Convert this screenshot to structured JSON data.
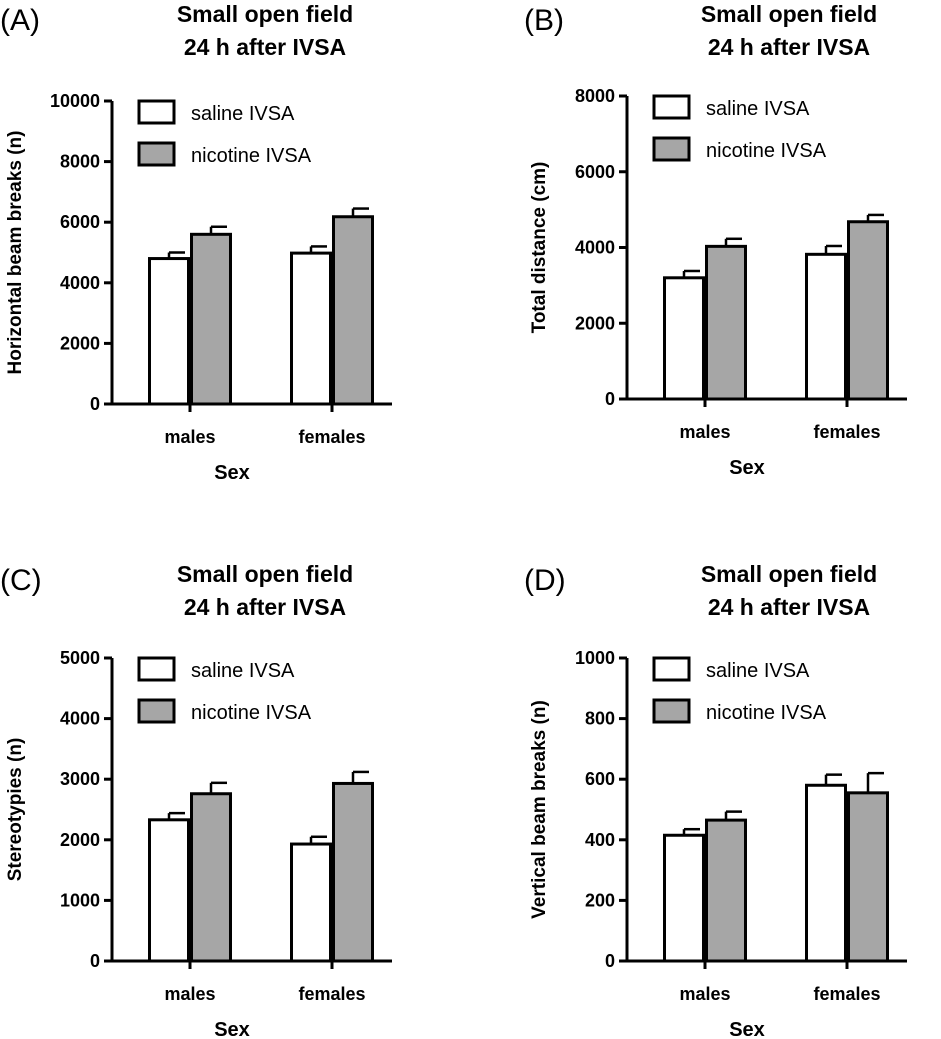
{
  "chart_data": [
    {
      "panel": "(A)",
      "type": "bar",
      "title_lines": [
        "Small open field",
        "24 h after IVSA"
      ],
      "xlabel": "Sex",
      "ylabel": "Horizontal beam breaks (n)",
      "categories": [
        "males",
        "females"
      ],
      "ylim": [
        0,
        10000
      ],
      "yticks": [
        0,
        2000,
        4000,
        6000,
        8000,
        10000
      ],
      "series": [
        {
          "name": "saline IVSA",
          "color": "#ffffff",
          "values": [
            4800,
            4980
          ],
          "errors": [
            200,
            220
          ]
        },
        {
          "name": "nicotine IVSA",
          "color": "#a6a6a6",
          "values": [
            5600,
            6180
          ],
          "errors": [
            250,
            270
          ]
        }
      ],
      "legend": "top-left"
    },
    {
      "panel": "(B)",
      "type": "bar",
      "title_lines": [
        "Small open field",
        "24 h after IVSA"
      ],
      "xlabel": "Sex",
      "ylabel": "Total distance (cm)",
      "categories": [
        "males",
        "females"
      ],
      "ylim": [
        0,
        8000
      ],
      "yticks": [
        0,
        2000,
        4000,
        6000,
        8000
      ],
      "series": [
        {
          "name": "saline IVSA",
          "color": "#ffffff",
          "values": [
            3200,
            3820
          ],
          "errors": [
            180,
            220
          ]
        },
        {
          "name": "nicotine IVSA",
          "color": "#a6a6a6",
          "values": [
            4030,
            4680
          ],
          "errors": [
            200,
            180
          ]
        }
      ],
      "legend": "top-left"
    },
    {
      "panel": "(C)",
      "type": "bar",
      "title_lines": [
        "Small open field",
        "24 h after IVSA"
      ],
      "xlabel": "Sex",
      "ylabel": "Stereotypies (n)",
      "categories": [
        "males",
        "females"
      ],
      "ylim": [
        0,
        5000
      ],
      "yticks": [
        0,
        1000,
        2000,
        3000,
        4000,
        5000
      ],
      "series": [
        {
          "name": "saline IVSA",
          "color": "#ffffff",
          "values": [
            2330,
            1930
          ],
          "errors": [
            110,
            120
          ]
        },
        {
          "name": "nicotine IVSA",
          "color": "#a6a6a6",
          "values": [
            2760,
            2930
          ],
          "errors": [
            180,
            190
          ]
        }
      ],
      "legend": "top-left"
    },
    {
      "panel": "(D)",
      "type": "bar",
      "title_lines": [
        "Small open field",
        "24 h after IVSA"
      ],
      "xlabel": "Sex",
      "ylabel": "Vertical beam breaks (n)",
      "categories": [
        "males",
        "females"
      ],
      "ylim": [
        0,
        1000
      ],
      "yticks": [
        0,
        200,
        400,
        600,
        800,
        1000
      ],
      "series": [
        {
          "name": "saline IVSA",
          "color": "#ffffff",
          "values": [
            415,
            580
          ],
          "errors": [
            20,
            35
          ]
        },
        {
          "name": "nicotine IVSA",
          "color": "#a6a6a6",
          "values": [
            465,
            555
          ],
          "errors": [
            28,
            65
          ]
        }
      ],
      "legend": "top-left"
    }
  ]
}
